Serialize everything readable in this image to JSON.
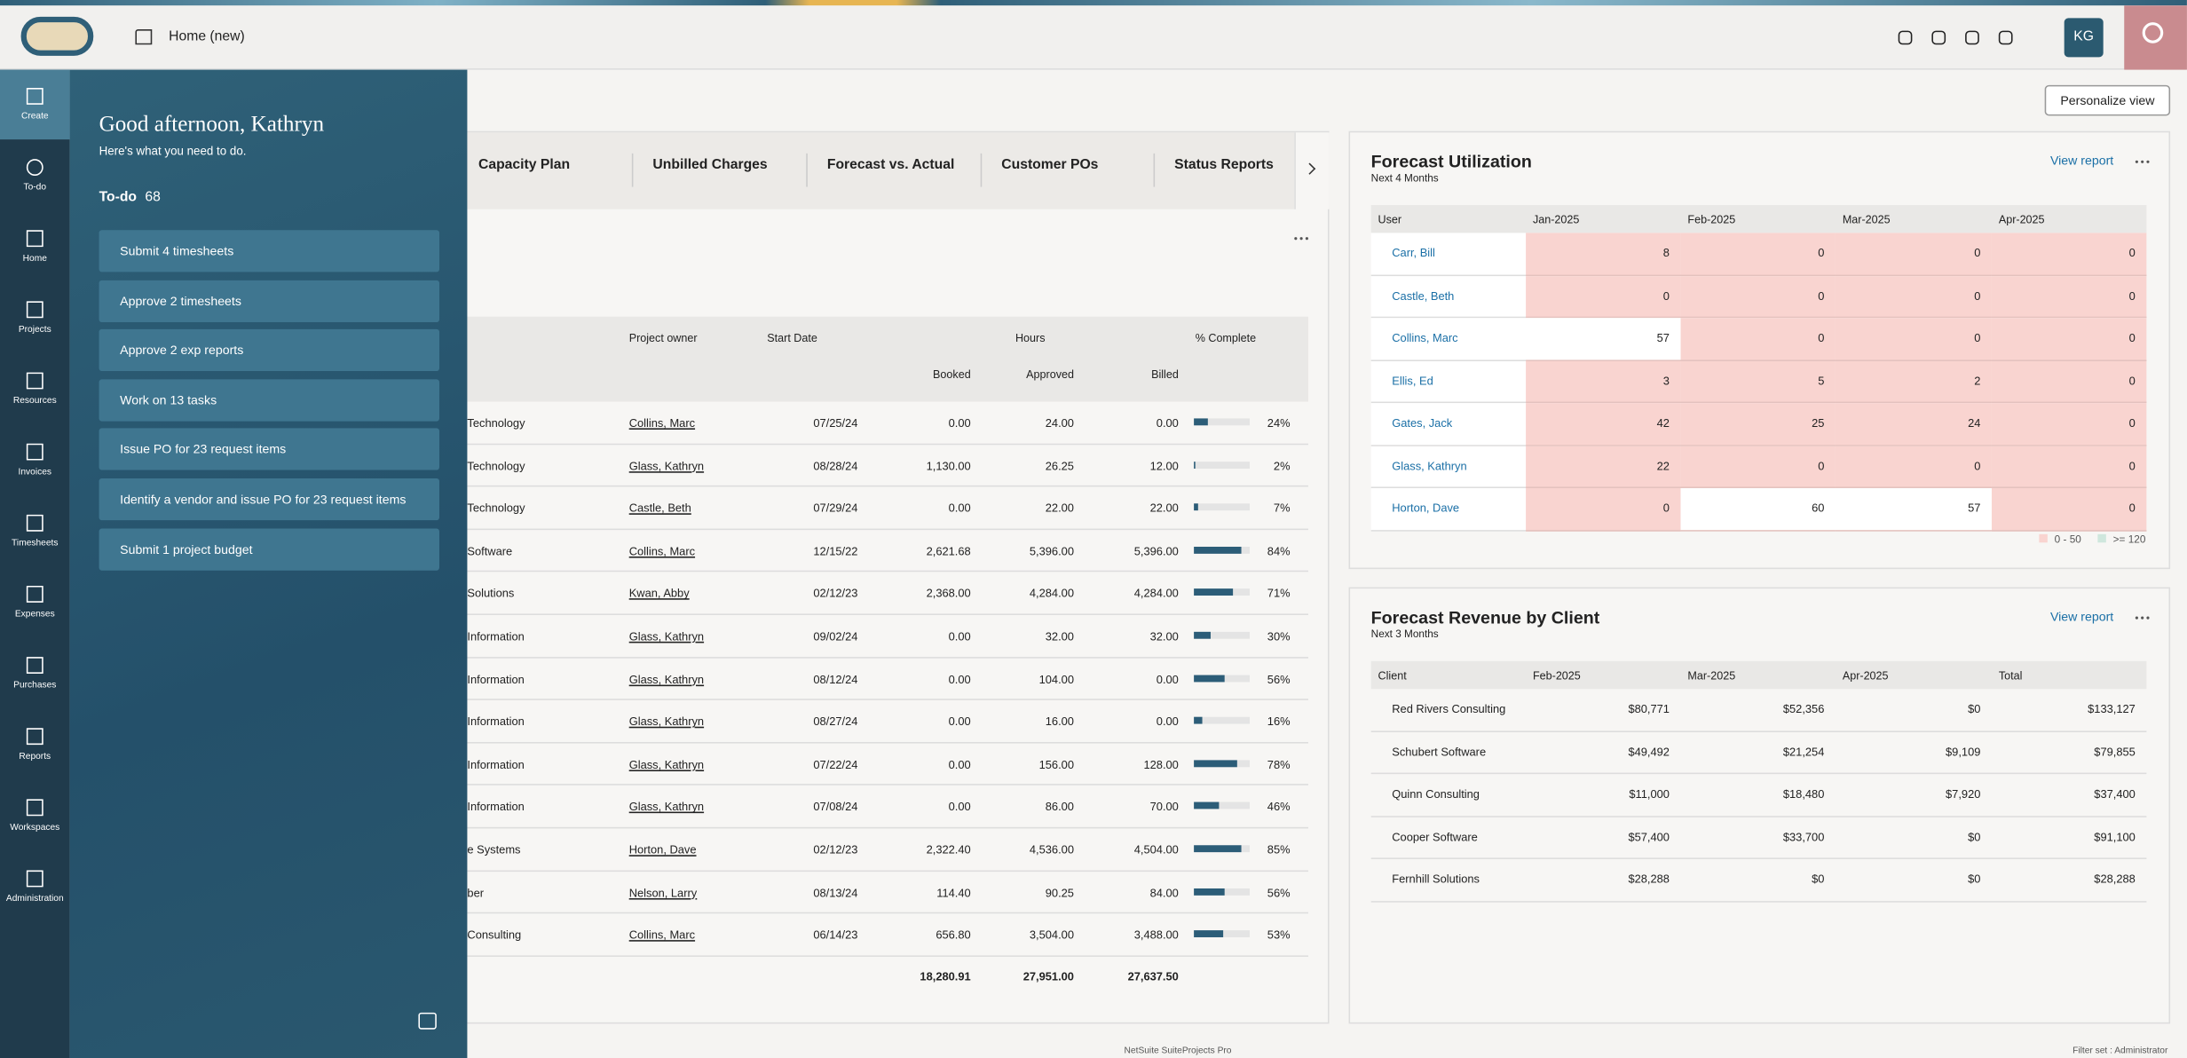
{
  "header": {
    "breadcrumb": "Home (new)",
    "avatar": "KG",
    "personalize": "Personalize view"
  },
  "nav": [
    "Create",
    "To-do",
    "Home",
    "Projects",
    "Resources",
    "Invoices",
    "Timesheets",
    "Expenses",
    "Purchases",
    "Reports",
    "Workspaces",
    "Administration"
  ],
  "todo": {
    "greeting": "Good afternoon, Kathryn",
    "subtitle": "Here's what you need to do.",
    "label": "To-do",
    "count": 68,
    "items": [
      "Submit 4 timesheets",
      "Approve 2 timesheets",
      "Approve 2 exp reports",
      "Work on 13 tasks",
      "Issue PO for 23 request items",
      "Identify a vendor and issue PO for 23 request items",
      "Submit 1 project budget"
    ]
  },
  "projects": {
    "tabs": [
      "Capacity Plan",
      "Unbilled Charges",
      "Forecast vs. Actual",
      "Customer POs",
      "Status Reports"
    ],
    "headers": {
      "owner": "Project owner",
      "start": "Start Date",
      "hours": "Hours",
      "pct": "% Complete",
      "booked": "Booked",
      "approved": "Approved",
      "billed": "Billed"
    },
    "rows": [
      {
        "name": "Technology",
        "owner": "Collins, Marc",
        "start": "07/25/24",
        "booked": "0.00",
        "approved": "24.00",
        "billed": "0.00",
        "pct": 24,
        "pct_label": "24%"
      },
      {
        "name": "Technology",
        "owner": "Glass, Kathryn",
        "start": "08/28/24",
        "booked": "1,130.00",
        "approved": "26.25",
        "billed": "12.00",
        "pct": 2,
        "pct_label": "2%"
      },
      {
        "name": "Technology",
        "owner": "Castle, Beth",
        "start": "07/29/24",
        "booked": "0.00",
        "approved": "22.00",
        "billed": "22.00",
        "pct": 7,
        "pct_label": "7%"
      },
      {
        "name": "Software",
        "owner": "Collins, Marc",
        "start": "12/15/22",
        "booked": "2,621.68",
        "approved": "5,396.00",
        "billed": "5,396.00",
        "pct": 84,
        "pct_label": "84%"
      },
      {
        "name": "Solutions",
        "owner": "Kwan, Abby",
        "start": "02/12/23",
        "booked": "2,368.00",
        "approved": "4,284.00",
        "billed": "4,284.00",
        "pct": 71,
        "pct_label": "71%"
      },
      {
        "name": "Information",
        "owner": "Glass, Kathryn",
        "start": "09/02/24",
        "booked": "0.00",
        "approved": "32.00",
        "billed": "32.00",
        "pct": 30,
        "pct_label": "30%"
      },
      {
        "name": "Information",
        "owner": "Glass, Kathryn",
        "start": "08/12/24",
        "booked": "0.00",
        "approved": "104.00",
        "billed": "0.00",
        "pct": 56,
        "pct_label": "56%"
      },
      {
        "name": "Information",
        "owner": "Glass, Kathryn",
        "start": "08/27/24",
        "booked": "0.00",
        "approved": "16.00",
        "billed": "0.00",
        "pct": 16,
        "pct_label": "16%"
      },
      {
        "name": "Information",
        "owner": "Glass, Kathryn",
        "start": "07/22/24",
        "booked": "0.00",
        "approved": "156.00",
        "billed": "128.00",
        "pct": 78,
        "pct_label": "78%"
      },
      {
        "name": "Information",
        "owner": "Glass, Kathryn",
        "start": "07/08/24",
        "booked": "0.00",
        "approved": "86.00",
        "billed": "70.00",
        "pct": 46,
        "pct_label": "46%"
      },
      {
        "name": "e Systems",
        "owner": "Horton, Dave",
        "start": "02/12/23",
        "booked": "2,322.40",
        "approved": "4,536.00",
        "billed": "4,504.00",
        "pct": 85,
        "pct_label": "85%"
      },
      {
        "name": "ber",
        "owner": "Nelson, Larry",
        "start": "08/13/24",
        "booked": "114.40",
        "approved": "90.25",
        "billed": "84.00",
        "pct": 56,
        "pct_label": "56%"
      },
      {
        "name": "Consulting",
        "owner": "Collins, Marc",
        "start": "06/14/23",
        "booked": "656.80",
        "approved": "3,504.00",
        "billed": "3,488.00",
        "pct": 53,
        "pct_label": "53%"
      }
    ],
    "totals": {
      "booked": "18,280.91",
      "approved": "27,951.00",
      "billed": "27,637.50"
    }
  },
  "utilization": {
    "title": "Forecast Utilization",
    "subtitle": "Next 4 Months",
    "link": "View report",
    "headers": [
      "User",
      "Jan-2025",
      "Feb-2025",
      "Mar-2025",
      "Apr-2025"
    ],
    "rows": [
      {
        "user": "Carr, Bill",
        "values": [
          8,
          0,
          0,
          0
        ]
      },
      {
        "user": "Castle, Beth",
        "values": [
          0,
          0,
          0,
          0
        ]
      },
      {
        "user": "Collins, Marc",
        "values": [
          57,
          0,
          0,
          0
        ]
      },
      {
        "user": "Ellis, Ed",
        "values": [
          3,
          5,
          2,
          0
        ]
      },
      {
        "user": "Gates, Jack",
        "values": [
          42,
          25,
          24,
          0
        ]
      },
      {
        "user": "Glass, Kathryn",
        "values": [
          22,
          0,
          0,
          0
        ]
      },
      {
        "user": "Horton, Dave",
        "values": [
          0,
          60,
          57,
          0
        ]
      }
    ],
    "legend": [
      {
        "label": "0 - 50",
        "color": "#f9d4d0",
        "range": [
          0,
          50
        ]
      },
      {
        "label": ">= 120",
        "color": "#cfe7dd",
        "range": [
          120,
          null
        ]
      }
    ]
  },
  "revenue": {
    "title": "Forecast Revenue by Client",
    "subtitle": "Next 3 Months",
    "link": "View report",
    "headers": [
      "Client",
      "Feb-2025",
      "Mar-2025",
      "Apr-2025",
      "Total"
    ],
    "rows": [
      [
        "Red Rivers Consulting",
        "$80,771",
        "$52,356",
        "$0",
        "$133,127"
      ],
      [
        "Schubert Software",
        "$49,492",
        "$21,254",
        "$9,109",
        "$79,855"
      ],
      [
        "Quinn Consulting",
        "$11,000",
        "$18,480",
        "$7,920",
        "$37,400"
      ],
      [
        "Cooper Software",
        "$57,400",
        "$33,700",
        "$0",
        "$91,100"
      ],
      [
        "Fernhill Solutions",
        "$28,288",
        "$0",
        "$0",
        "$28,288"
      ]
    ]
  },
  "footer": {
    "product": "NetSuite SuiteProjects Pro",
    "filter": "Filter set : Administrator"
  }
}
